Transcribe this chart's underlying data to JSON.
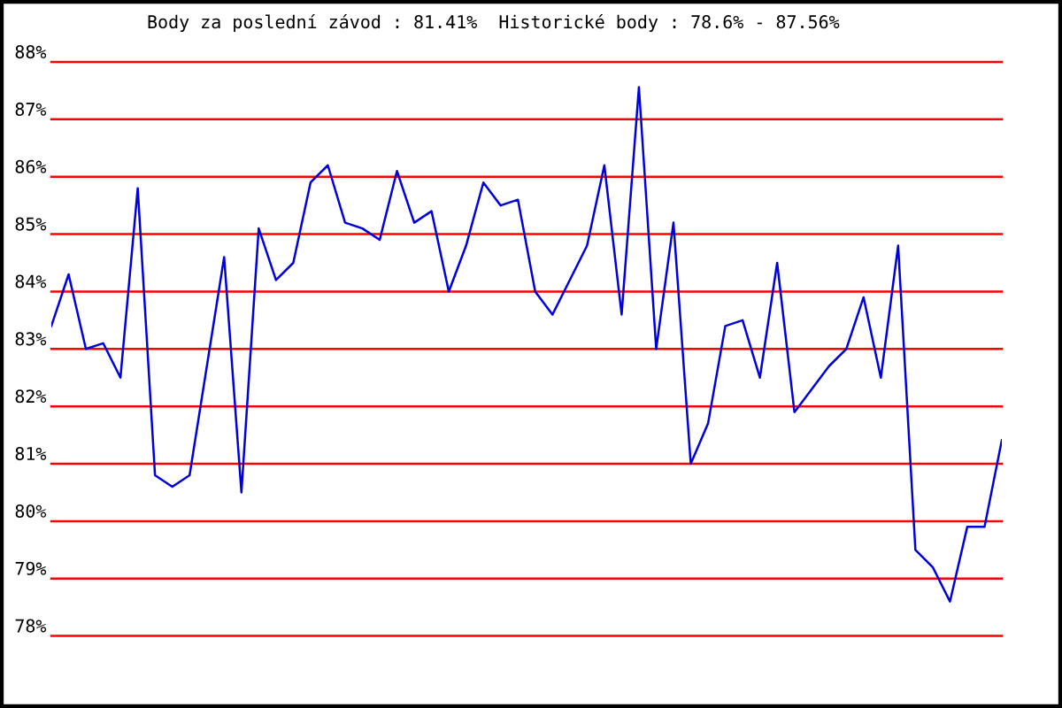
{
  "chart_data": {
    "type": "line",
    "title": "Body za poslední závod : 81.41%  Historické body : 78.6% - 87.56%",
    "categories": [
      null,
      null,
      null,
      null,
      null,
      null,
      null,
      null,
      null,
      null,
      null,
      null,
      null,
      null,
      null,
      null,
      null,
      null,
      null,
      null,
      null,
      null,
      null,
      null,
      null,
      null,
      null,
      null,
      null,
      null,
      null,
      null,
      null,
      null,
      null,
      null,
      null,
      null,
      null,
      null,
      null,
      null,
      null,
      null,
      null,
      null,
      null,
      null,
      null,
      null,
      null,
      null,
      null,
      null,
      null,
      null
    ],
    "values": [
      83.4,
      84.3,
      83.0,
      83.1,
      82.5,
      85.8,
      80.8,
      80.6,
      80.8,
      82.7,
      84.6,
      80.5,
      85.1,
      84.2,
      84.5,
      85.9,
      86.2,
      85.2,
      85.1,
      84.9,
      86.1,
      85.2,
      85.4,
      84.0,
      84.8,
      85.9,
      85.5,
      85.6,
      84.0,
      83.6,
      84.2,
      84.8,
      86.2,
      83.6,
      87.56,
      83.0,
      85.2,
      81.0,
      81.7,
      83.4,
      83.5,
      82.5,
      84.5,
      81.9,
      82.3,
      82.7,
      83.0,
      83.9,
      82.5,
      84.8,
      79.5,
      79.2,
      78.6,
      79.9,
      79.9,
      81.41
    ],
    "color": "#0000dd",
    "ylim": [
      78,
      88
    ],
    "yticks": [
      {
        "value": 78,
        "label": "78%"
      },
      {
        "value": 79,
        "label": "79%"
      },
      {
        "value": 80,
        "label": "80%"
      },
      {
        "value": 81,
        "label": "81%"
      },
      {
        "value": 82,
        "label": "82%"
      },
      {
        "value": 83,
        "label": "83%"
      },
      {
        "value": 84,
        "label": "84%"
      },
      {
        "value": 85,
        "label": "85%"
      },
      {
        "value": 86,
        "label": "86%"
      },
      {
        "value": 87,
        "label": "87%"
      },
      {
        "value": 88,
        "label": "88%"
      }
    ],
    "grid": "y",
    "tick_labels": "y"
  }
}
